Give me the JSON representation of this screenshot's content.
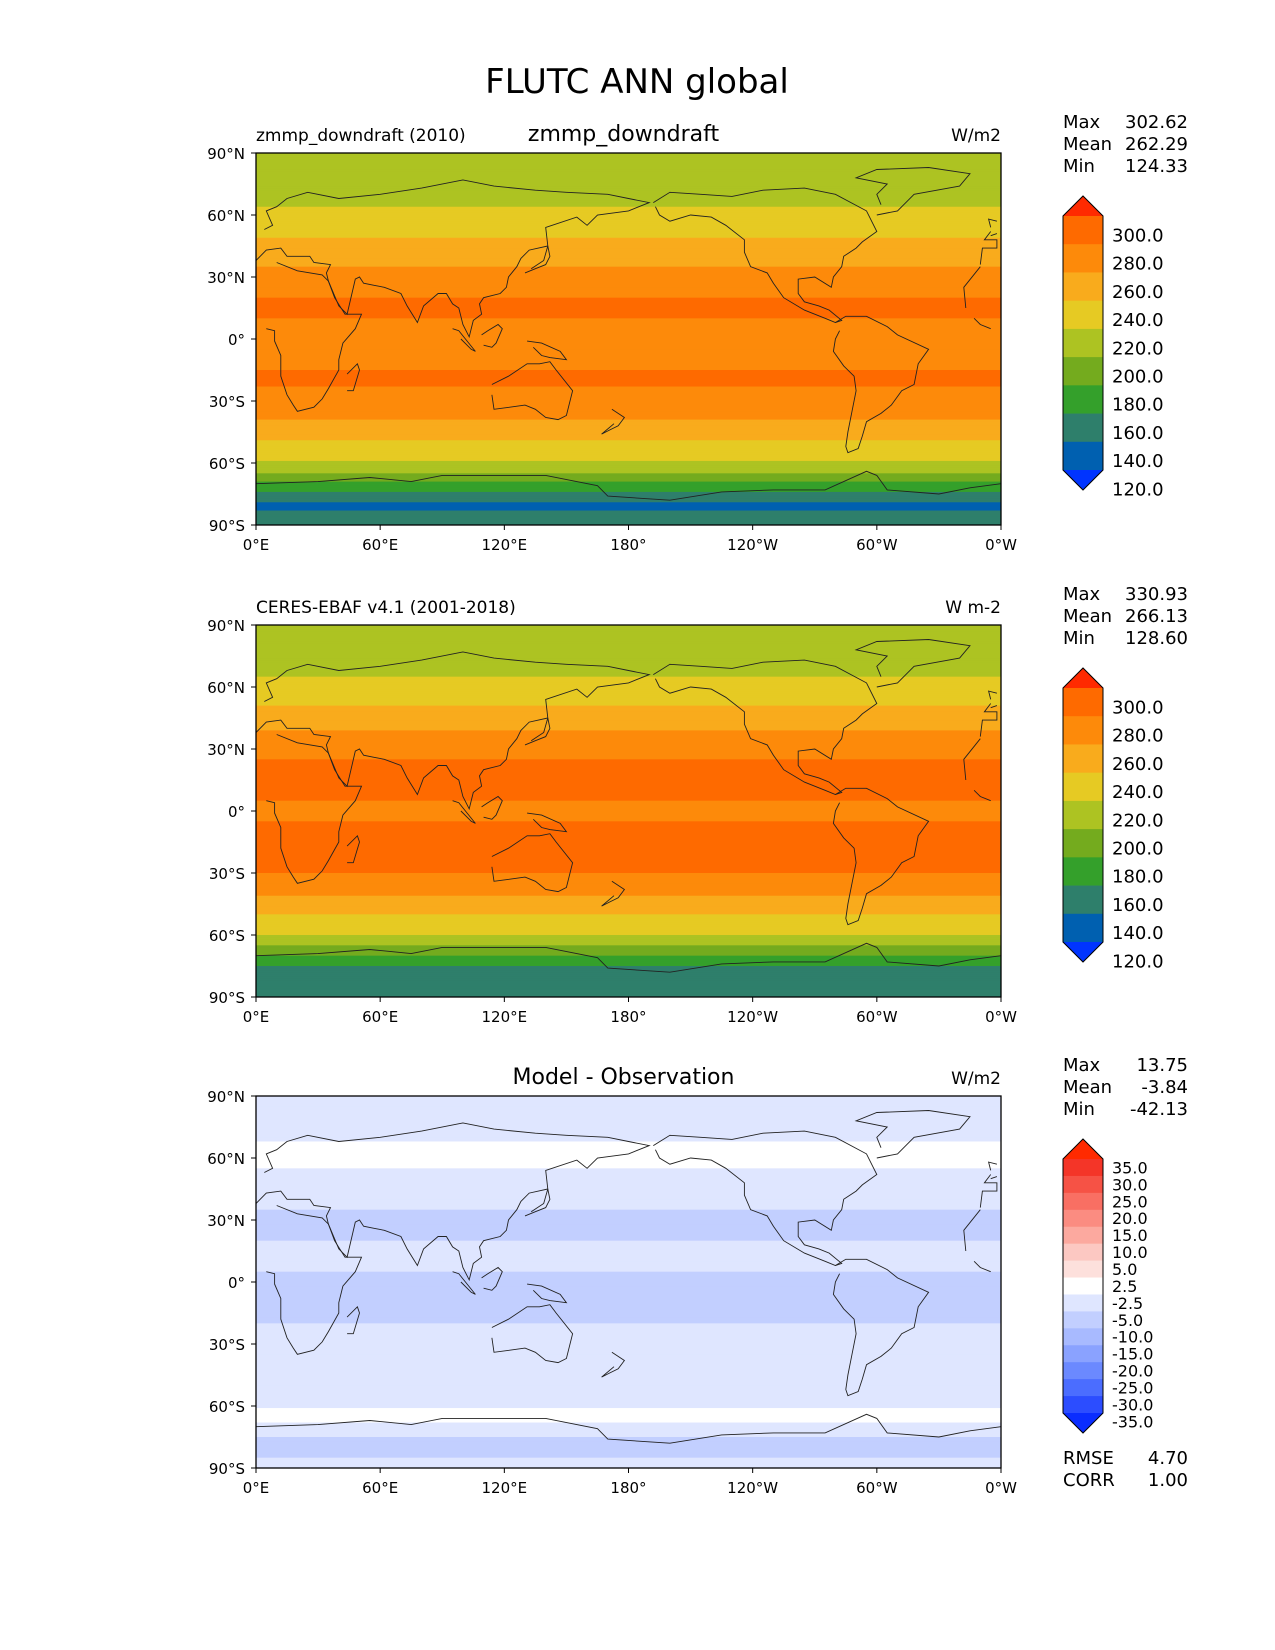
{
  "figure": {
    "title": "FLUTC ANN global"
  },
  "axes": {
    "lat_ticks": [
      "90°N",
      "60°N",
      "30°N",
      "0°",
      "30°S",
      "60°S",
      "90°S"
    ],
    "lon_ticks": [
      "0°E",
      "60°E",
      "120°E",
      "180°",
      "120°W",
      "60°W",
      "0°W"
    ]
  },
  "panels": [
    {
      "left_title": "zmmp_downdraft (2010)",
      "center_title": "zmmp_downdraft",
      "units": "W/m2",
      "stats": [
        {
          "label": "Max",
          "value": "302.62"
        },
        {
          "label": "Mean",
          "value": "262.29"
        },
        {
          "label": "Min",
          "value": "124.33"
        }
      ],
      "colorbar_labels": [
        "300.0",
        "280.0",
        "260.0",
        "240.0",
        "220.0",
        "200.0",
        "180.0",
        "160.0",
        "140.0",
        "120.0"
      ]
    },
    {
      "left_title": "CERES-EBAF v4.1 (2001-2018)",
      "center_title": "",
      "units": "W m-2",
      "stats": [
        {
          "label": "Max",
          "value": "330.93"
        },
        {
          "label": "Mean",
          "value": "266.13"
        },
        {
          "label": "Min",
          "value": "128.60"
        }
      ],
      "colorbar_labels": [
        "300.0",
        "280.0",
        "260.0",
        "240.0",
        "220.0",
        "200.0",
        "180.0",
        "160.0",
        "140.0",
        "120.0"
      ]
    },
    {
      "left_title": "",
      "center_title": "Model - Observation",
      "units": "W/m2",
      "stats": [
        {
          "label": "Max",
          "value": "13.75"
        },
        {
          "label": "Mean",
          "value": "-3.84"
        },
        {
          "label": "Min",
          "value": "-42.13"
        }
      ],
      "colorbar_labels": [
        "35.0",
        "30.0",
        "25.0",
        "20.0",
        "15.0",
        "10.0",
        "5.0",
        "2.5",
        "-2.5",
        "-5.0",
        "-10.0",
        "-15.0",
        "-20.0",
        "-25.0",
        "-30.0",
        "-35.0"
      ],
      "metrics": [
        {
          "label": "RMSE",
          "value": "4.70"
        },
        {
          "label": "CORR",
          "value": "1.00"
        }
      ]
    }
  ],
  "chart_data": [
    {
      "type": "heatmap",
      "title": "zmmp_downdraft",
      "subtitle": "zmmp_downdraft (2010)",
      "units": "W/m2",
      "xlim": [
        0,
        360
      ],
      "ylim": [
        -90,
        90
      ],
      "color_levels": [
        120,
        140,
        160,
        180,
        200,
        220,
        240,
        260,
        280,
        300
      ],
      "zonal_profile": {
        "lat": [
          90,
          75,
          60,
          50,
          40,
          30,
          20,
          10,
          0,
          -10,
          -20,
          -30,
          -40,
          -50,
          -60,
          -65,
          -70,
          -75,
          -80,
          -90
        ],
        "value": [
          210,
          205,
          225,
          238,
          252,
          268,
          280,
          280,
          268,
          278,
          282,
          275,
          258,
          238,
          218,
          200,
          175,
          155,
          138,
          145
        ]
      },
      "stats": {
        "max": 302.62,
        "mean": 262.29,
        "min": 124.33
      }
    },
    {
      "type": "heatmap",
      "title": "CERES-EBAF v4.1 (2001-2018)",
      "units": "W m-2",
      "xlim": [
        0,
        360
      ],
      "ylim": [
        -90,
        90
      ],
      "color_levels": [
        120,
        140,
        160,
        180,
        200,
        220,
        240,
        260,
        280,
        300
      ],
      "zonal_profile": {
        "lat": [
          90,
          75,
          60,
          50,
          40,
          30,
          20,
          10,
          0,
          -10,
          -20,
          -30,
          -40,
          -50,
          -60,
          -65,
          -70,
          -75,
          -80,
          -90
        ],
        "value": [
          210,
          205,
          228,
          242,
          258,
          275,
          285,
          285,
          275,
          285,
          288,
          280,
          262,
          240,
          222,
          200,
          178,
          158,
          142,
          160
        ]
      },
      "stats": {
        "max": 330.93,
        "mean": 266.13,
        "min": 128.6
      }
    },
    {
      "type": "heatmap",
      "title": "Model - Observation",
      "units": "W/m2",
      "xlim": [
        0,
        360
      ],
      "ylim": [
        -90,
        90
      ],
      "color_levels": [
        -35,
        -30,
        -25,
        -20,
        -15,
        -10,
        -5,
        -2.5,
        2.5,
        5,
        10,
        15,
        20,
        25,
        30,
        35
      ],
      "zonal_profile": {
        "lat": [
          90,
          75,
          60,
          50,
          40,
          30,
          20,
          10,
          0,
          -10,
          -20,
          -30,
          -40,
          -50,
          -60,
          -65,
          -70,
          -75,
          -80,
          -90
        ],
        "value": [
          -4,
          -3,
          -2,
          -3,
          -4,
          -6,
          -5,
          -3,
          -7,
          -6,
          -5,
          -5,
          -4,
          -3,
          -3,
          -1,
          -4,
          -5,
          -6,
          -4
        ]
      },
      "stats": {
        "max": 13.75,
        "mean": -3.84,
        "min": -42.13,
        "rmse": 4.7,
        "corr": 1.0
      }
    }
  ]
}
